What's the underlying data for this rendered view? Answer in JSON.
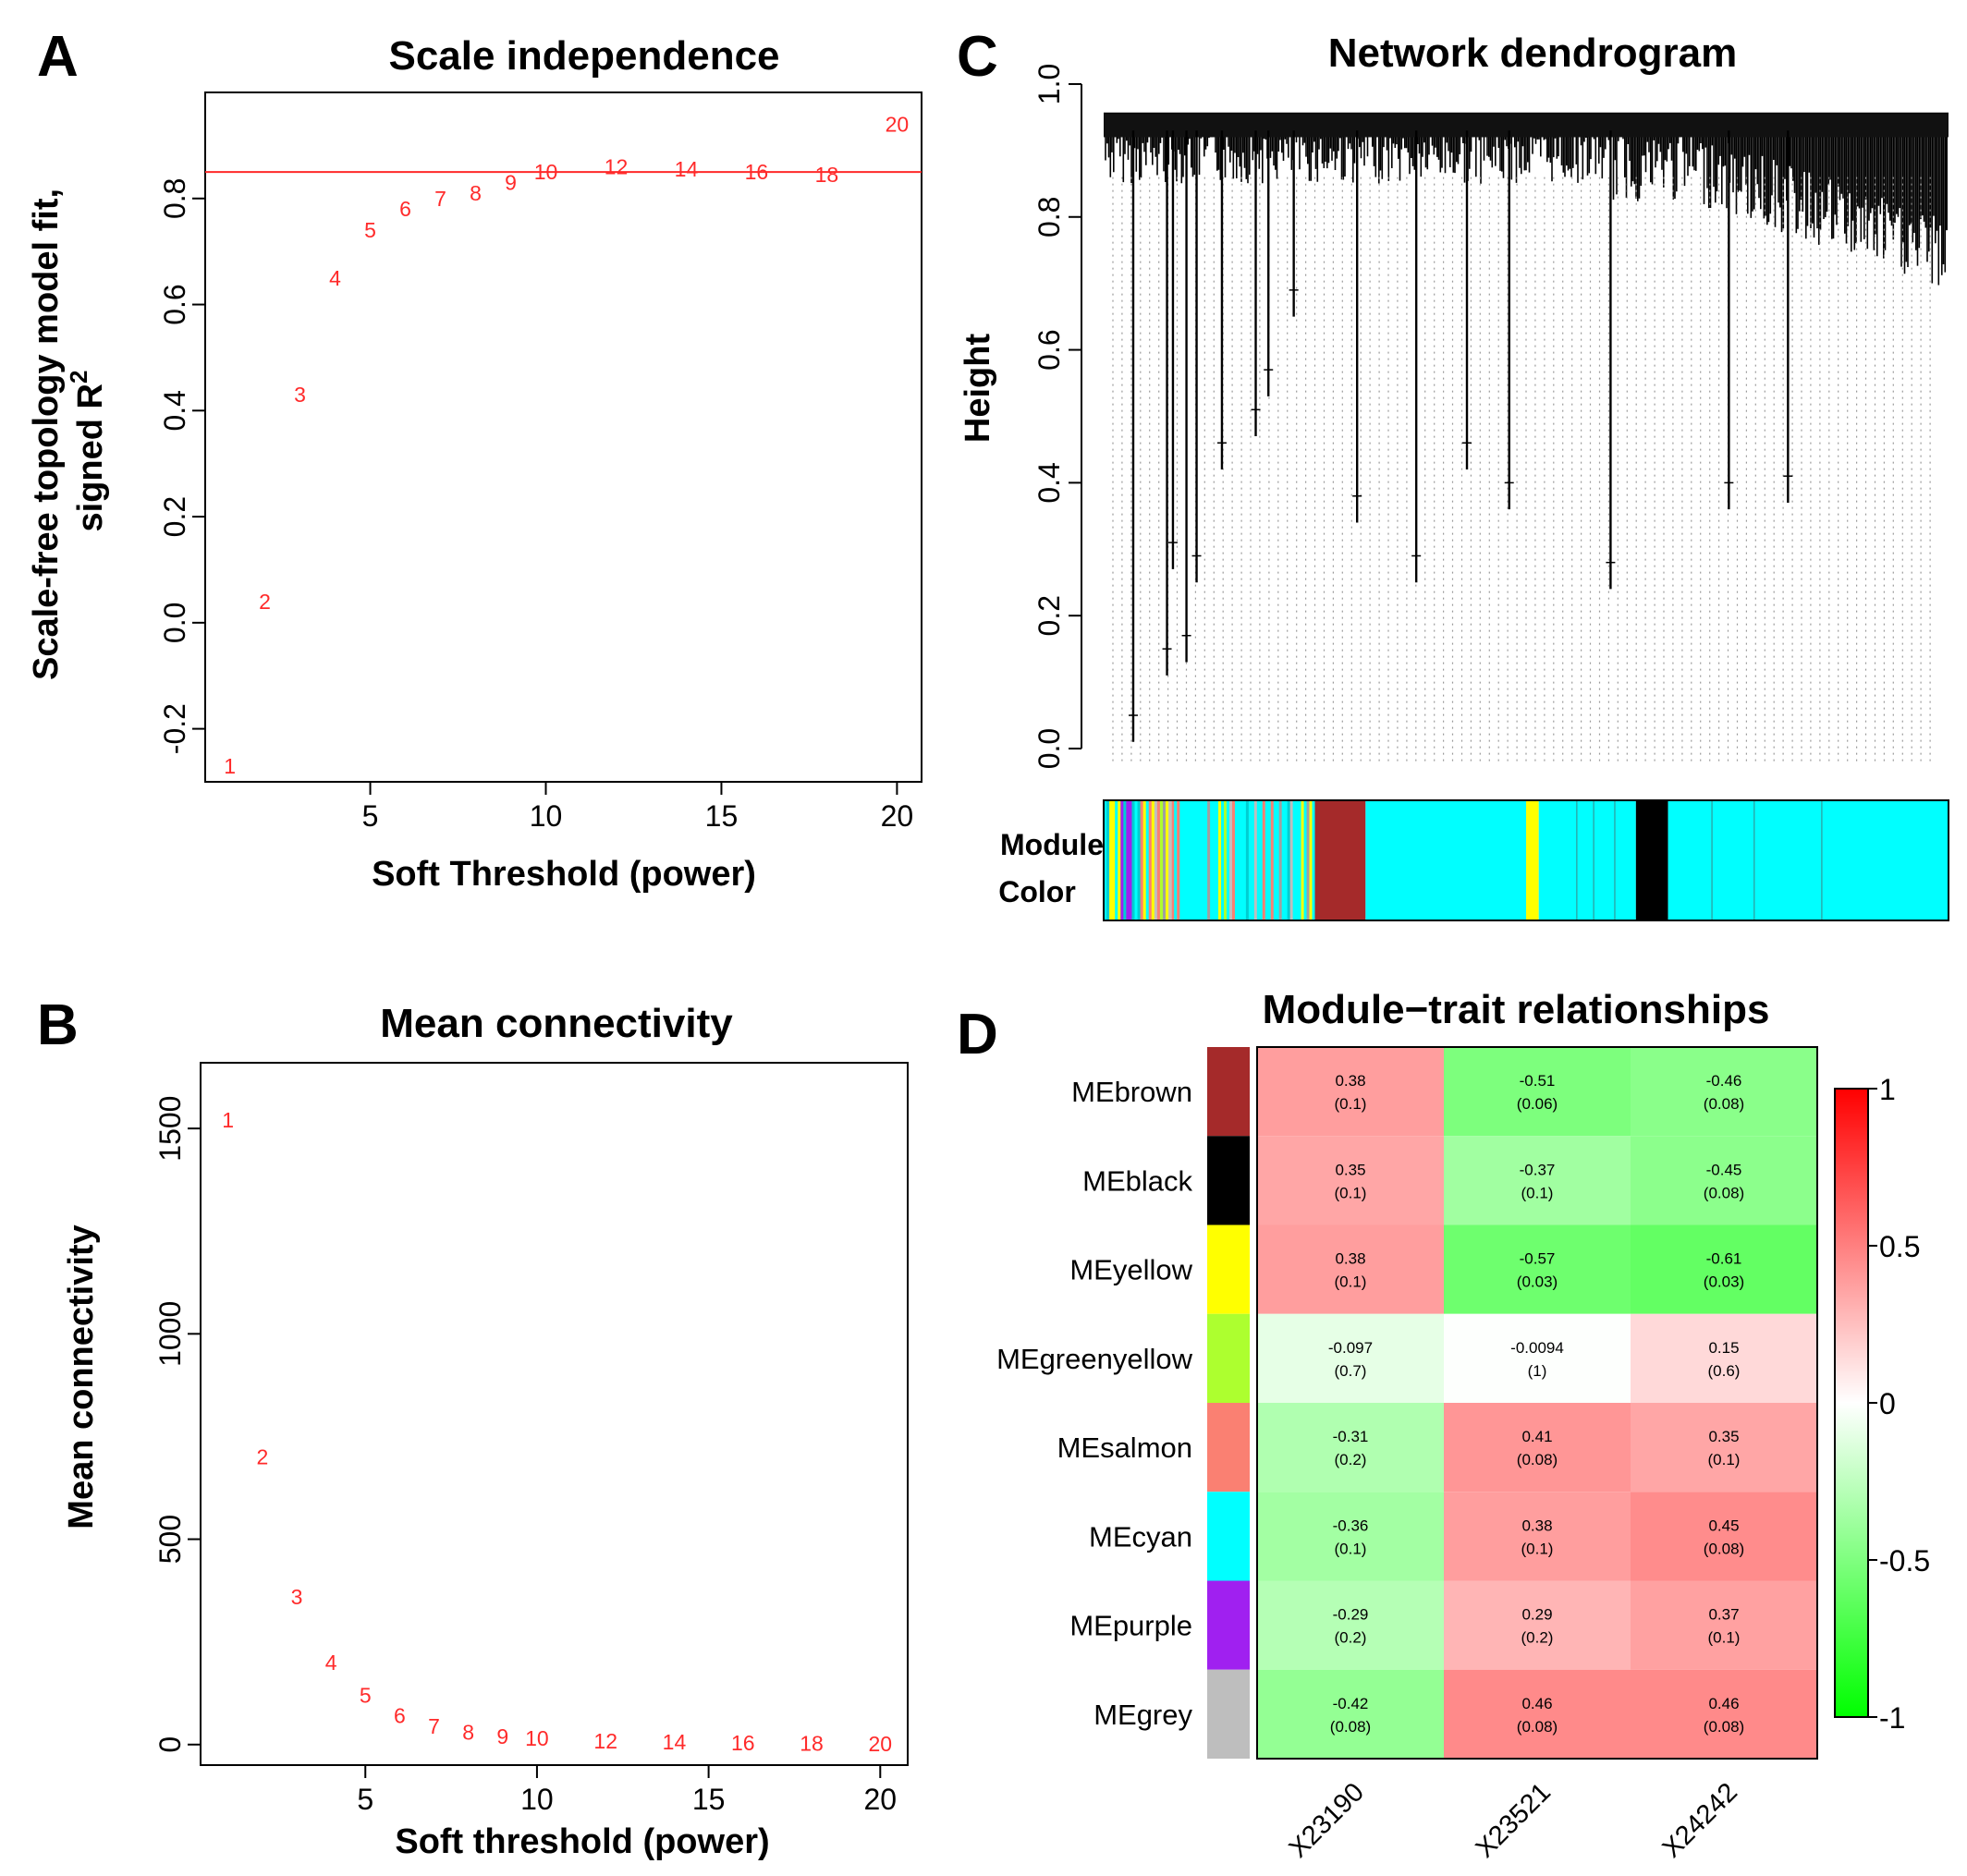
{
  "panels": {
    "a": {
      "letter": "A",
      "chart_data": {
        "type": "scatter",
        "title": "Scale independence",
        "xlabel": "Soft Threshold (power)",
        "ylabel_line1": "Scale-free topology model fit,",
        "ylabel_line2": "signed R",
        "ylabel_sup": "2",
        "xlim": [
          0.3,
          20.7
        ],
        "ylim": [
          -0.3,
          1.0
        ],
        "xticks": [
          5,
          10,
          15,
          20
        ],
        "yticks": [
          -0.2,
          0.0,
          0.2,
          0.4,
          0.6,
          0.8
        ],
        "ytick_labels": [
          "-0.2",
          "0.0",
          "0.2",
          "0.4",
          "0.6",
          "0.8"
        ],
        "hline": 0.85,
        "points": [
          {
            "x": 1,
            "y": -0.27,
            "label": "1"
          },
          {
            "x": 2,
            "y": 0.04,
            "label": "2"
          },
          {
            "x": 3,
            "y": 0.43,
            "label": "3"
          },
          {
            "x": 4,
            "y": 0.65,
            "label": "4"
          },
          {
            "x": 5,
            "y": 0.74,
            "label": "5"
          },
          {
            "x": 6,
            "y": 0.78,
            "label": "6"
          },
          {
            "x": 7,
            "y": 0.8,
            "label": "7"
          },
          {
            "x": 8,
            "y": 0.81,
            "label": "8"
          },
          {
            "x": 9,
            "y": 0.83,
            "label": "9"
          },
          {
            "x": 10,
            "y": 0.85,
            "label": "10"
          },
          {
            "x": 12,
            "y": 0.86,
            "label": "12"
          },
          {
            "x": 14,
            "y": 0.855,
            "label": "14"
          },
          {
            "x": 16,
            "y": 0.85,
            "label": "16"
          },
          {
            "x": 18,
            "y": 0.845,
            "label": "18"
          },
          {
            "x": 20,
            "y": 0.94,
            "label": "20"
          }
        ]
      }
    },
    "b": {
      "letter": "B",
      "chart_data": {
        "type": "scatter",
        "title": "Mean connectivity",
        "xlabel": "Soft threshold (power)",
        "ylabel": "Mean connectivity",
        "xlim": [
          0.2,
          20.8
        ],
        "ylim": [
          -50,
          1660
        ],
        "xticks": [
          5,
          10,
          15,
          20
        ],
        "yticks": [
          0,
          500,
          1000,
          1500
        ],
        "ytick_labels": [
          "0",
          "500",
          "1000",
          "1500"
        ],
        "points": [
          {
            "x": 1,
            "y": 1520,
            "label": "1"
          },
          {
            "x": 2,
            "y": 700,
            "label": "2"
          },
          {
            "x": 3,
            "y": 360,
            "label": "3"
          },
          {
            "x": 4,
            "y": 200,
            "label": "4"
          },
          {
            "x": 5,
            "y": 120,
            "label": "5"
          },
          {
            "x": 6,
            "y": 70,
            "label": "6"
          },
          {
            "x": 7,
            "y": 45,
            "label": "7"
          },
          {
            "x": 8,
            "y": 30,
            "label": "8"
          },
          {
            "x": 9,
            "y": 20,
            "label": "9"
          },
          {
            "x": 10,
            "y": 15,
            "label": "10"
          },
          {
            "x": 12,
            "y": 9,
            "label": "12"
          },
          {
            "x": 14,
            "y": 6,
            "label": "14"
          },
          {
            "x": 16,
            "y": 4,
            "label": "16"
          },
          {
            "x": 18,
            "y": 3,
            "label": "18"
          },
          {
            "x": 20,
            "y": 2,
            "label": "20"
          }
        ]
      }
    },
    "c": {
      "letter": "C",
      "chart_data": {
        "type": "dendrogram",
        "title": "Network dendrogram",
        "ylabel": "Height",
        "ylim": [
          0.0,
          1.0
        ],
        "yticks": [
          0.0,
          0.2,
          0.4,
          0.6,
          0.8,
          1.0
        ],
        "ytick_labels": [
          "0.0",
          "0.2",
          "0.4",
          "0.6",
          "0.8",
          "1.0"
        ],
        "color_bar_label_line1": "Module",
        "color_bar_label_line2": "Color",
        "module_segments": [
          {
            "start": 0.0,
            "end": 0.09,
            "color": "mixed"
          },
          {
            "start": 0.0,
            "end": 0.08,
            "color": "mixed"
          },
          {
            "start": 0.09,
            "end": 0.25,
            "color": "mixed-cyan"
          },
          {
            "start": 0.25,
            "end": 0.31,
            "color": "#a52a2a"
          },
          {
            "start": 0.31,
            "end": 0.5,
            "color": "#00ffff"
          },
          {
            "start": 0.5,
            "end": 0.515,
            "color": "#ffff00"
          },
          {
            "start": 0.515,
            "end": 0.63,
            "color": "#00ffff"
          },
          {
            "start": 0.63,
            "end": 0.668,
            "color": "#000000"
          },
          {
            "start": 0.668,
            "end": 1.0,
            "color": "#00ffff"
          }
        ],
        "deep_dips": [
          {
            "pos": 0.035,
            "h": 0.01
          },
          {
            "pos": 0.075,
            "h": 0.11
          },
          {
            "pos": 0.082,
            "h": 0.27
          },
          {
            "pos": 0.098,
            "h": 0.13
          },
          {
            "pos": 0.11,
            "h": 0.25
          },
          {
            "pos": 0.14,
            "h": 0.42
          },
          {
            "pos": 0.18,
            "h": 0.47
          },
          {
            "pos": 0.195,
            "h": 0.53
          },
          {
            "pos": 0.225,
            "h": 0.65
          },
          {
            "pos": 0.3,
            "h": 0.34
          },
          {
            "pos": 0.37,
            "h": 0.25
          },
          {
            "pos": 0.43,
            "h": 0.42
          },
          {
            "pos": 0.48,
            "h": 0.36
          },
          {
            "pos": 0.6,
            "h": 0.24
          },
          {
            "pos": 0.74,
            "h": 0.36
          },
          {
            "pos": 0.81,
            "h": 0.37
          }
        ]
      }
    },
    "d": {
      "letter": "D",
      "chart_data": {
        "type": "heatmap",
        "title": "Module−trait relationships",
        "rows": [
          "MEbrown",
          "MEblack",
          "MEyellow",
          "MEgreenyellow",
          "MEsalmon",
          "MEcyan",
          "MEpurple",
          "MEgrey"
        ],
        "row_colors": [
          "#a52a2a",
          "#000000",
          "#ffff00",
          "#adff2f",
          "#fa8072",
          "#00ffff",
          "#a020f0",
          "#bebebe"
        ],
        "columns": [
          "X23190",
          "X23521",
          "X24242"
        ],
        "values": [
          [
            0.38,
            -0.51,
            -0.46
          ],
          [
            0.35,
            -0.37,
            -0.45
          ],
          [
            0.38,
            -0.57,
            -0.61
          ],
          [
            -0.097,
            -0.0094,
            0.15
          ],
          [
            -0.31,
            0.41,
            0.35
          ],
          [
            -0.36,
            0.38,
            0.45
          ],
          [
            -0.29,
            0.29,
            0.37
          ],
          [
            -0.42,
            0.46,
            0.46
          ]
        ],
        "value_labels": [
          [
            "0.38",
            "-0.51",
            "-0.46"
          ],
          [
            "0.35",
            "-0.37",
            "-0.45"
          ],
          [
            "0.38",
            "-0.57",
            "-0.61"
          ],
          [
            "-0.097",
            "-0.0094",
            "0.15"
          ],
          [
            "-0.31",
            "0.41",
            "0.35"
          ],
          [
            "-0.36",
            "0.38",
            "0.45"
          ],
          [
            "-0.29",
            "0.29",
            "0.37"
          ],
          [
            "-0.42",
            "0.46",
            "0.46"
          ]
        ],
        "pvalue_labels": [
          [
            "(0.1)",
            "(0.06)",
            "(0.08)"
          ],
          [
            "(0.1)",
            "(0.1)",
            "(0.08)"
          ],
          [
            "(0.1)",
            "(0.03)",
            "(0.03)"
          ],
          [
            "(0.7)",
            "(1)",
            "(0.6)"
          ],
          [
            "(0.2)",
            "(0.08)",
            "(0.1)"
          ],
          [
            "(0.1)",
            "(0.1)",
            "(0.08)"
          ],
          [
            "(0.2)",
            "(0.2)",
            "(0.1)"
          ],
          [
            "(0.08)",
            "(0.08)",
            "(0.08)"
          ]
        ],
        "legend": {
          "range": [
            -1,
            1
          ],
          "ticks": [
            1,
            0.5,
            0,
            -0.5,
            -1
          ],
          "tick_labels": [
            "1",
            "0.5",
            "0",
            "-0.5",
            "-1"
          ],
          "low_color": "#00ff00",
          "mid_color": "#ffffff",
          "high_color": "#ff0000"
        }
      }
    }
  }
}
